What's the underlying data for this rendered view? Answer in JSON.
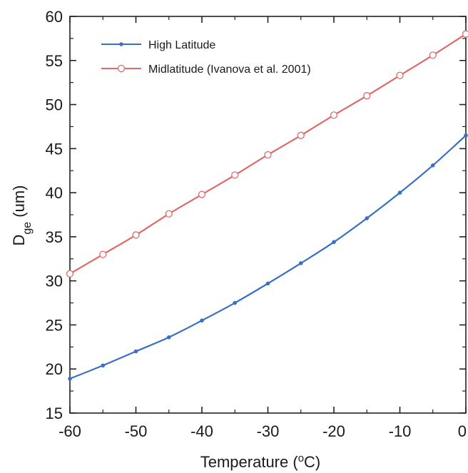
{
  "chart_data": {
    "type": "line",
    "title": "",
    "xlabel": {
      "main": "Temperature (",
      "sup": "o",
      "tail": "C)"
    },
    "ylabel": {
      "main": "D",
      "sub": "ge",
      "tail": " (um)"
    },
    "xlim": [
      -60,
      0
    ],
    "ylim": [
      15,
      60
    ],
    "xticks": [
      -60,
      -50,
      -40,
      -30,
      -20,
      -10,
      0
    ],
    "yticks": [
      15,
      20,
      25,
      30,
      35,
      40,
      45,
      50,
      55,
      60
    ],
    "x_tick_labels": [
      "-60",
      "-50",
      "-40",
      "-30",
      "-20",
      "-10",
      "0"
    ],
    "y_tick_labels": [
      "15",
      "20",
      "25",
      "30",
      "35",
      "40",
      "45",
      "50",
      "55",
      "60"
    ],
    "grid": false,
    "legend_position": "top-left",
    "series": [
      {
        "name": "High Latitude",
        "color": "#3a6fc4",
        "marker": "filled-dot",
        "x": [
          -60,
          -55,
          -50,
          -45,
          -40,
          -35,
          -30,
          -25,
          -20,
          -15,
          -10,
          -5,
          0
        ],
        "y": [
          18.9,
          20.4,
          22.0,
          23.6,
          25.5,
          27.5,
          29.7,
          32.0,
          34.4,
          37.1,
          40.0,
          43.1,
          46.5
        ]
      },
      {
        "name": "Midlatitude (Ivanova et al. 2001)",
        "color": "#e06a6a",
        "marker": "open-circle",
        "x": [
          -60,
          -55,
          -50,
          -45,
          -40,
          -35,
          -30,
          -25,
          -20,
          -15,
          -10,
          -5,
          0
        ],
        "y": [
          30.8,
          33.0,
          35.2,
          37.6,
          39.8,
          42.0,
          44.3,
          46.5,
          48.8,
          51.0,
          53.3,
          55.6,
          58.0
        ]
      }
    ]
  }
}
